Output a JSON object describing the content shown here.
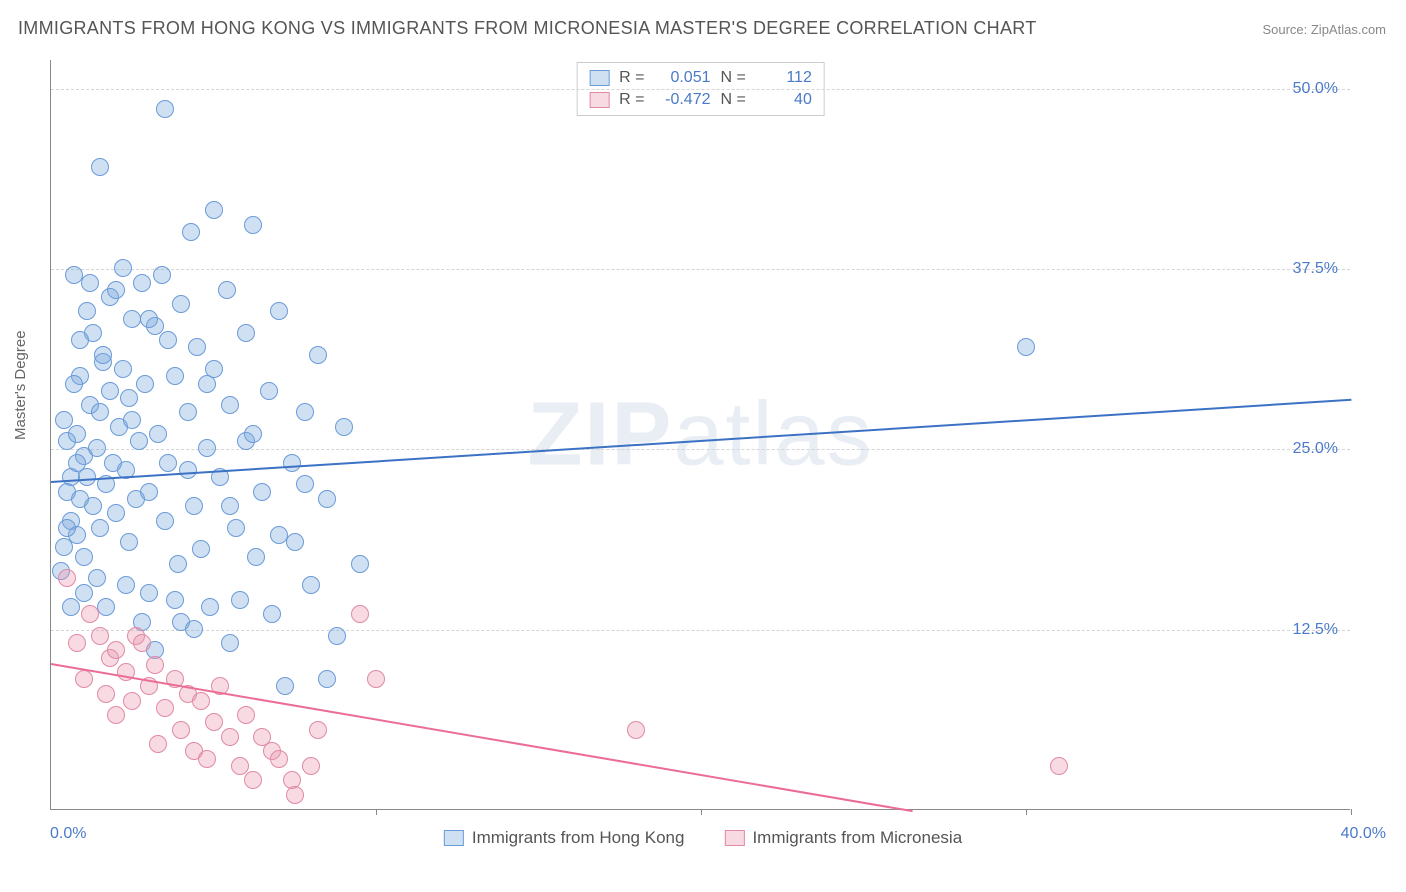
{
  "title": "IMMIGRANTS FROM HONG KONG VS IMMIGRANTS FROM MICRONESIA MASTER'S DEGREE CORRELATION CHART",
  "source": "Source: ZipAtlas.com",
  "ylabel": "Master's Degree",
  "watermark_a": "ZIP",
  "watermark_b": "atlas",
  "chart": {
    "type": "scatter",
    "xlim": [
      0,
      40
    ],
    "ylim": [
      0,
      52
    ],
    "yticks": [
      12.5,
      25.0,
      37.5,
      50.0
    ],
    "ytick_labels": [
      "12.5%",
      "25.0%",
      "37.5%",
      "50.0%"
    ],
    "xtick_marks": [
      10,
      20,
      30,
      40
    ],
    "x_start_label": "0.0%",
    "x_end_label": "40.0%",
    "background_color": "#ffffff",
    "grid_color": "#d5d5d5",
    "marker_size": 18,
    "series": [
      {
        "name": "Immigrants from Hong Kong",
        "fill": "rgba(120,165,220,0.35)",
        "stroke": "#6a9bd8",
        "line_color": "#3c72c4",
        "r_label": "R =",
        "r_value": "0.051",
        "n_label": "N =",
        "n_value": "112",
        "trend": {
          "x1": 0,
          "y1": 22.8,
          "x2": 40,
          "y2": 28.5
        },
        "points": [
          [
            0.3,
            16.5
          ],
          [
            0.4,
            18.2
          ],
          [
            0.5,
            22.0
          ],
          [
            0.5,
            25.5
          ],
          [
            0.6,
            23.0
          ],
          [
            0.6,
            20.0
          ],
          [
            0.7,
            37.0
          ],
          [
            0.8,
            19.0
          ],
          [
            0.8,
            26.0
          ],
          [
            0.9,
            21.5
          ],
          [
            0.9,
            30.0
          ],
          [
            1.0,
            17.5
          ],
          [
            1.0,
            24.5
          ],
          [
            1.1,
            23.0
          ],
          [
            1.2,
            36.5
          ],
          [
            1.2,
            28.0
          ],
          [
            1.3,
            21.0
          ],
          [
            1.3,
            33.0
          ],
          [
            1.4,
            25.0
          ],
          [
            1.5,
            44.5
          ],
          [
            1.5,
            19.5
          ],
          [
            1.5,
            27.5
          ],
          [
            1.6,
            31.0
          ],
          [
            1.7,
            22.5
          ],
          [
            1.8,
            29.0
          ],
          [
            1.8,
            35.5
          ],
          [
            1.9,
            24.0
          ],
          [
            2.0,
            36.0
          ],
          [
            2.0,
            20.5
          ],
          [
            2.1,
            26.5
          ],
          [
            2.2,
            37.5
          ],
          [
            2.2,
            30.5
          ],
          [
            2.3,
            23.5
          ],
          [
            2.4,
            18.5
          ],
          [
            2.5,
            34.0
          ],
          [
            2.5,
            27.0
          ],
          [
            2.6,
            21.5
          ],
          [
            2.7,
            25.5
          ],
          [
            2.8,
            36.5
          ],
          [
            2.9,
            29.5
          ],
          [
            3.0,
            22.0
          ],
          [
            3.0,
            15.0
          ],
          [
            3.2,
            33.5
          ],
          [
            3.3,
            26.0
          ],
          [
            3.4,
            37.0
          ],
          [
            3.5,
            20.0
          ],
          [
            3.5,
            48.5
          ],
          [
            3.6,
            24.0
          ],
          [
            3.8,
            30.0
          ],
          [
            3.9,
            17.0
          ],
          [
            4.0,
            35.0
          ],
          [
            4.0,
            13.0
          ],
          [
            4.2,
            27.5
          ],
          [
            4.3,
            40.0
          ],
          [
            4.4,
            21.0
          ],
          [
            4.5,
            32.0
          ],
          [
            4.6,
            18.0
          ],
          [
            4.8,
            25.0
          ],
          [
            4.9,
            14.0
          ],
          [
            5.0,
            41.5
          ],
          [
            5.0,
            30.5
          ],
          [
            5.2,
            23.0
          ],
          [
            5.4,
            36.0
          ],
          [
            5.5,
            11.5
          ],
          [
            5.5,
            28.0
          ],
          [
            5.7,
            19.5
          ],
          [
            5.8,
            14.5
          ],
          [
            6.0,
            33.0
          ],
          [
            6.0,
            25.5
          ],
          [
            6.2,
            40.5
          ],
          [
            6.3,
            17.5
          ],
          [
            6.5,
            22.0
          ],
          [
            6.7,
            29.0
          ],
          [
            6.8,
            13.5
          ],
          [
            7.0,
            34.5
          ],
          [
            7.2,
            8.5
          ],
          [
            7.4,
            24.0
          ],
          [
            7.5,
            18.5
          ],
          [
            7.8,
            27.5
          ],
          [
            8.0,
            15.5
          ],
          [
            8.2,
            31.5
          ],
          [
            8.5,
            21.5
          ],
          [
            8.8,
            12.0
          ],
          [
            9.0,
            26.5
          ],
          [
            9.5,
            17.0
          ],
          [
            2.8,
            13.0
          ],
          [
            3.2,
            11.0
          ],
          [
            3.8,
            14.5
          ],
          [
            4.4,
            12.5
          ],
          [
            1.7,
            14.0
          ],
          [
            2.3,
            15.5
          ],
          [
            0.6,
            14.0
          ],
          [
            1.0,
            15.0
          ],
          [
            1.4,
            16.0
          ],
          [
            0.4,
            27.0
          ],
          [
            0.7,
            29.5
          ],
          [
            0.9,
            32.5
          ],
          [
            1.1,
            34.5
          ],
          [
            1.6,
            31.5
          ],
          [
            2.4,
            28.5
          ],
          [
            3.0,
            34.0
          ],
          [
            3.6,
            32.5
          ],
          [
            4.2,
            23.5
          ],
          [
            4.8,
            29.5
          ],
          [
            5.5,
            21.0
          ],
          [
            6.2,
            26.0
          ],
          [
            7.0,
            19.0
          ],
          [
            7.8,
            22.5
          ],
          [
            8.5,
            9.0
          ],
          [
            0.5,
            19.5
          ],
          [
            0.8,
            24.0
          ],
          [
            30.0,
            32.0
          ]
        ]
      },
      {
        "name": "Immigrants from Micronesia",
        "fill": "rgba(235,150,175,0.35)",
        "stroke": "#e08aa5",
        "line_color": "#eb6d95",
        "r_label": "R =",
        "r_value": "-0.472",
        "n_label": "N =",
        "n_value": "40",
        "trend": {
          "x1": 0,
          "y1": 10.2,
          "x2": 26.5,
          "y2": 0
        },
        "points": [
          [
            0.5,
            16.0
          ],
          [
            0.8,
            11.5
          ],
          [
            1.0,
            9.0
          ],
          [
            1.2,
            13.5
          ],
          [
            1.5,
            12.0
          ],
          [
            1.7,
            8.0
          ],
          [
            1.8,
            10.5
          ],
          [
            2.0,
            6.5
          ],
          [
            2.0,
            11.0
          ],
          [
            2.3,
            9.5
          ],
          [
            2.5,
            7.5
          ],
          [
            2.6,
            12.0
          ],
          [
            2.8,
            11.5
          ],
          [
            3.0,
            8.5
          ],
          [
            3.2,
            10.0
          ],
          [
            3.3,
            4.5
          ],
          [
            3.5,
            7.0
          ],
          [
            3.8,
            9.0
          ],
          [
            4.0,
            5.5
          ],
          [
            4.2,
            8.0
          ],
          [
            4.4,
            4.0
          ],
          [
            4.6,
            7.5
          ],
          [
            4.8,
            3.5
          ],
          [
            5.0,
            6.0
          ],
          [
            5.2,
            8.5
          ],
          [
            5.5,
            5.0
          ],
          [
            5.8,
            3.0
          ],
          [
            6.0,
            6.5
          ],
          [
            6.2,
            2.0
          ],
          [
            6.5,
            5.0
          ],
          [
            6.8,
            4.0
          ],
          [
            7.0,
            3.5
          ],
          [
            7.4,
            2.0
          ],
          [
            7.5,
            1.0
          ],
          [
            8.0,
            3.0
          ],
          [
            8.2,
            5.5
          ],
          [
            9.5,
            13.5
          ],
          [
            10.0,
            9.0
          ],
          [
            18.0,
            5.5
          ],
          [
            31.0,
            3.0
          ]
        ]
      }
    ]
  },
  "legend": {
    "series1": "Immigrants from Hong Kong",
    "series2": "Immigrants from Micronesia"
  }
}
